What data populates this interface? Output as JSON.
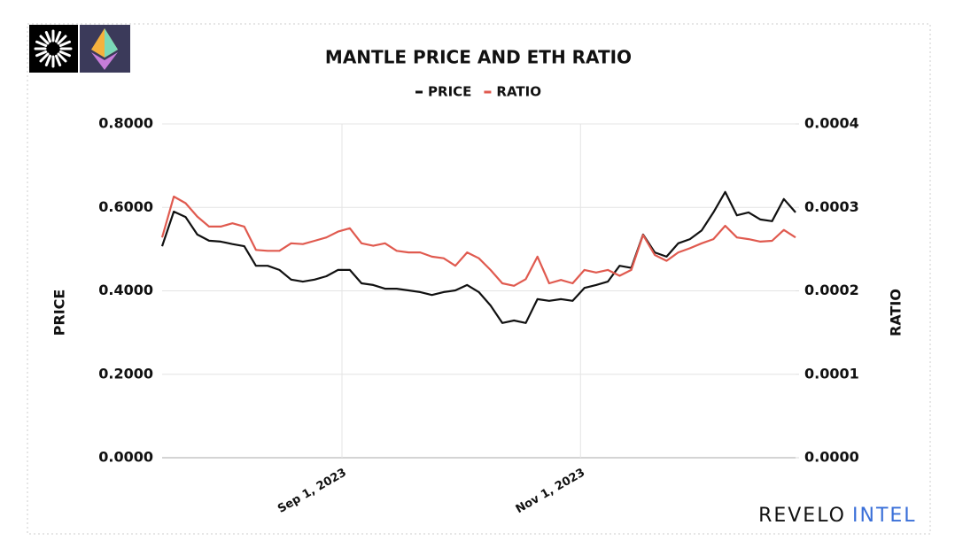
{
  "chart_data": {
    "type": "line",
    "title": "MANTLE PRICE AND ETH RATIO",
    "ylabel": "PRICE",
    "y2label": "RATIO",
    "watermark": [
      "REVELO",
      "INTEL"
    ],
    "legend": "top",
    "grid": true,
    "x": [
      "2023-07-17",
      "2023-07-20",
      "2023-07-23",
      "2023-07-26",
      "2023-07-29",
      "2023-08-01",
      "2023-08-04",
      "2023-08-07",
      "2023-08-10",
      "2023-08-13",
      "2023-08-16",
      "2023-08-19",
      "2023-08-22",
      "2023-08-25",
      "2023-08-28",
      "2023-08-31",
      "2023-09-03",
      "2023-09-06",
      "2023-09-09",
      "2023-09-12",
      "2023-09-15",
      "2023-09-18",
      "2023-09-21",
      "2023-09-24",
      "2023-09-27",
      "2023-09-30",
      "2023-10-03",
      "2023-10-06",
      "2023-10-09",
      "2023-10-12",
      "2023-10-15",
      "2023-10-18",
      "2023-10-21",
      "2023-10-24",
      "2023-10-27",
      "2023-10-30",
      "2023-11-02",
      "2023-11-05",
      "2023-11-08",
      "2023-11-11",
      "2023-11-14",
      "2023-11-17",
      "2023-11-20",
      "2023-11-23",
      "2023-11-26",
      "2023-11-29",
      "2023-12-02",
      "2023-12-05",
      "2023-12-08",
      "2023-12-11",
      "2023-12-14",
      "2023-12-17",
      "2023-12-20",
      "2023-12-23",
      "2023-12-26"
    ],
    "xlim": [
      "2023-07-17",
      "2023-12-26"
    ],
    "xticks": [
      {
        "value": "2023-09-01",
        "label": "Sep 1, 2023"
      },
      {
        "value": "2023-11-01",
        "label": "Nov 1, 2023"
      }
    ],
    "ylim": [
      0,
      0.8
    ],
    "yticks": [
      {
        "value": 0,
        "label": "0.0000"
      },
      {
        "value": 0.2,
        "label": "0.2000"
      },
      {
        "value": 0.4,
        "label": "0.4000"
      },
      {
        "value": 0.6,
        "label": "0.6000"
      },
      {
        "value": 0.8,
        "label": "0.8000"
      }
    ],
    "y2lim": [
      0,
      0.0004
    ],
    "y2ticks": [
      {
        "value": 0,
        "label": "0.0000"
      },
      {
        "value": 0.0001,
        "label": "0.0001"
      },
      {
        "value": 0.0002,
        "label": "0.0002"
      },
      {
        "value": 0.0003,
        "label": "0.0003"
      },
      {
        "value": 0.0004,
        "label": "0.0004"
      }
    ],
    "series": [
      {
        "name": "PRICE",
        "color": "#111111",
        "axis": "y",
        "values": [
          0.507,
          0.59,
          0.577,
          0.535,
          0.52,
          0.518,
          0.512,
          0.507,
          0.46,
          0.46,
          0.45,
          0.427,
          0.422,
          0.427,
          0.435,
          0.45,
          0.45,
          0.418,
          0.414,
          0.405,
          0.405,
          0.401,
          0.397,
          0.39,
          0.397,
          0.401,
          0.414,
          0.397,
          0.365,
          0.323,
          0.329,
          0.323,
          0.38,
          0.376,
          0.38,
          0.376,
          0.407,
          0.414,
          0.422,
          0.46,
          0.455,
          0.535,
          0.492,
          0.482,
          0.514,
          0.524,
          0.545,
          0.588,
          0.637,
          0.581,
          0.588,
          0.571,
          0.567,
          0.62,
          0.588
        ]
      },
      {
        "name": "RATIO",
        "color": "#e05a4f",
        "axis": "y2",
        "values": [
          0.000264,
          0.000313,
          0.000305,
          0.000289,
          0.000277,
          0.000277,
          0.000281,
          0.000277,
          0.000249,
          0.000248,
          0.000248,
          0.000257,
          0.000256,
          0.00026,
          0.000264,
          0.000271,
          0.000275,
          0.000257,
          0.000254,
          0.000257,
          0.000248,
          0.000246,
          0.000246,
          0.000241,
          0.000239,
          0.00023,
          0.000246,
          0.000239,
          0.000225,
          0.000209,
          0.000206,
          0.000214,
          0.000241,
          0.000209,
          0.000213,
          0.000209,
          0.000225,
          0.000222,
          0.000225,
          0.000218,
          0.000225,
          0.000267,
          0.000243,
          0.000236,
          0.000246,
          0.000251,
          0.000257,
          0.000262,
          0.000278,
          0.000264,
          0.000262,
          0.000259,
          0.00026,
          0.000273,
          0.000264
        ]
      }
    ]
  }
}
